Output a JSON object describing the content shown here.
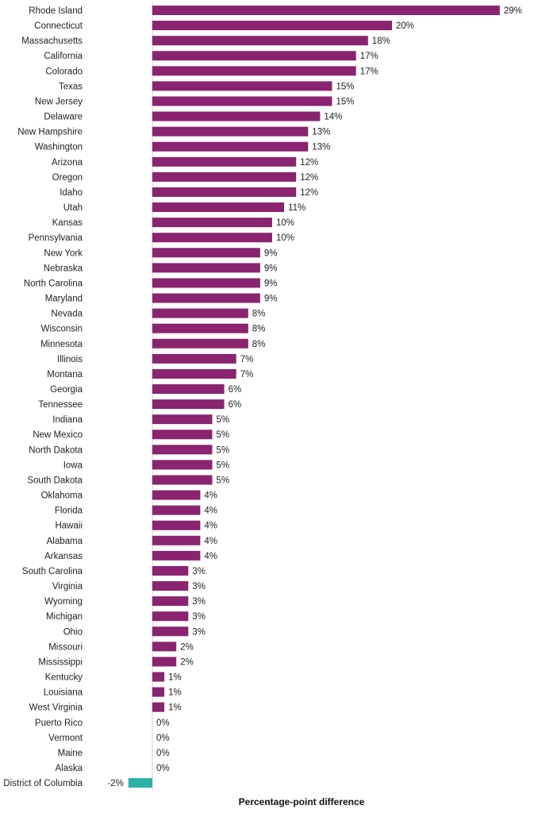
{
  "chart_data": {
    "type": "bar",
    "orientation": "horizontal",
    "xlabel": "Percentage-point difference",
    "ylabel": "",
    "title": "",
    "value_suffix": "%",
    "xlim": [
      -2,
      29
    ],
    "grid": false,
    "colors": {
      "positive": "#8a2470",
      "negative": "#2bb3a6",
      "zero_line": "#d0d0d0"
    },
    "categories": [
      "Rhode Island",
      "Connecticut",
      "Massachusetts",
      "California",
      "Colorado",
      "Texas",
      "New Jersey",
      "Delaware",
      "New Hampshire",
      "Washington",
      "Arizona",
      "Oregon",
      "Idaho",
      "Utah",
      "Kansas",
      "Pennsylvania",
      "New York",
      "Nebraska",
      "North Carolina",
      "Maryland",
      "Nevada",
      "Wisconsin",
      "Minnesota",
      "Illinois",
      "Montana",
      "Georgia",
      "Tennessee",
      "Indiana",
      "New Mexico",
      "North Dakota",
      "Iowa",
      "South Dakota",
      "Oklahoma",
      "Florida",
      "Hawaii",
      "Alabama",
      "Arkansas",
      "South Carolina",
      "Virginia",
      "Wyoming",
      "Michigan",
      "Ohio",
      "Missouri",
      "Mississippi",
      "Kentucky",
      "Louisiana",
      "West Virginia",
      "Puerto Rico",
      "Vermont",
      "Maine",
      "Alaska",
      "District of Columbia"
    ],
    "values": [
      29,
      20,
      18,
      17,
      17,
      15,
      15,
      14,
      13,
      13,
      12,
      12,
      12,
      11,
      10,
      10,
      9,
      9,
      9,
      9,
      8,
      8,
      8,
      7,
      7,
      6,
      6,
      5,
      5,
      5,
      5,
      5,
      4,
      4,
      4,
      4,
      4,
      3,
      3,
      3,
      3,
      3,
      2,
      2,
      1,
      1,
      1,
      0,
      0,
      0,
      0,
      -2
    ],
    "labels": [
      "29%",
      "20%",
      "18%",
      "17%",
      "17%",
      "15%",
      "15%",
      "14%",
      "13%",
      "13%",
      "12%",
      "12%",
      "12%",
      "11%",
      "10%",
      "10%",
      "9%",
      "9%",
      "9%",
      "9%",
      "8%",
      "8%",
      "8%",
      "7%",
      "7%",
      "6%",
      "6%",
      "5%",
      "5%",
      "5%",
      "5%",
      "5%",
      "4%",
      "4%",
      "4%",
      "4%",
      "4%",
      "3%",
      "3%",
      "3%",
      "3%",
      "3%",
      "2%",
      "2%",
      "1%",
      "1%",
      "1%",
      "0%",
      "0%",
      "0%",
      "0%",
      "-2%"
    ]
  }
}
